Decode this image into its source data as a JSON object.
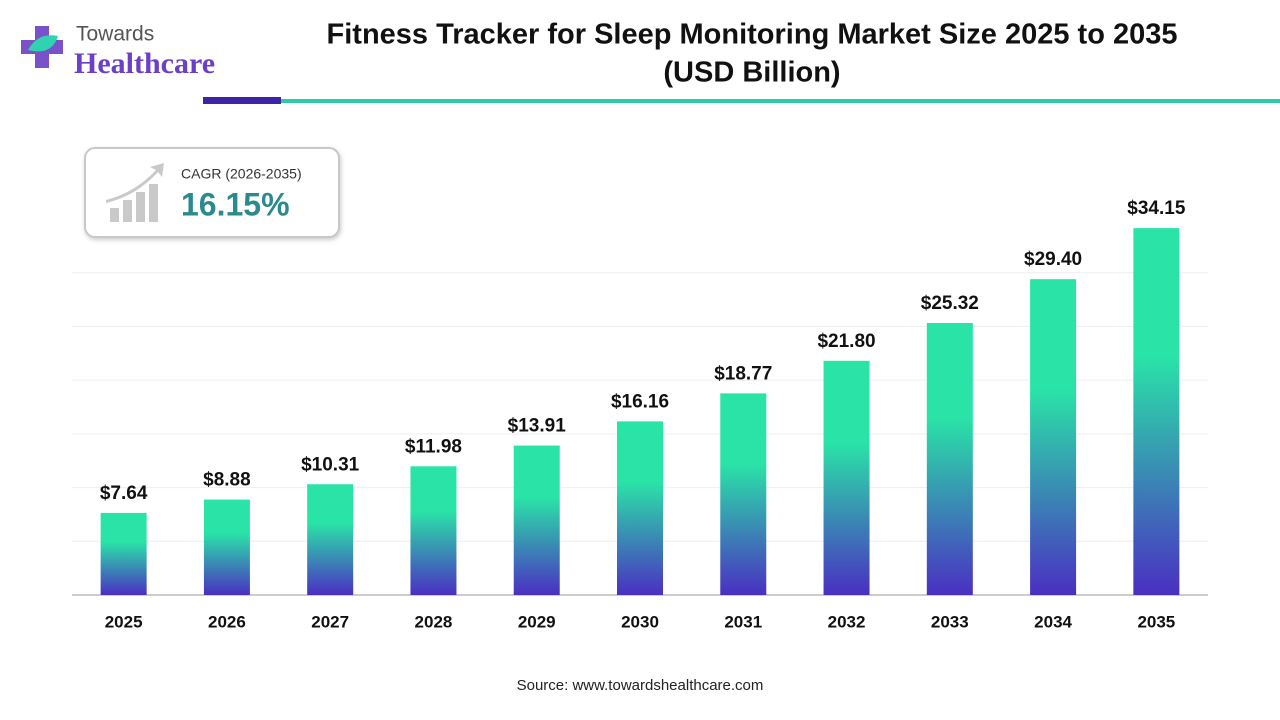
{
  "brand": {
    "line1": "Towards",
    "line2": "Healthcare"
  },
  "chart_data": {
    "type": "bar",
    "title": "Fitness Tracker for Sleep Monitoring Market Size 2025 to 2035",
    "subtitle": "(USD Billion)",
    "categories": [
      "2025",
      "2026",
      "2027",
      "2028",
      "2029",
      "2030",
      "2031",
      "2032",
      "2033",
      "2034",
      "2035"
    ],
    "values": [
      7.64,
      8.88,
      10.31,
      11.98,
      13.91,
      16.16,
      18.77,
      21.8,
      25.32,
      29.4,
      34.15
    ],
    "value_labels": [
      "$7.64",
      "$8.88",
      "$10.31",
      "$11.98",
      "$13.91",
      "$16.16",
      "$18.77",
      "$21.80",
      "$25.32",
      "$29.40",
      "$34.15"
    ],
    "colors": [
      "#2ae3a7",
      "#4a2fc2"
    ],
    "ylim": [
      0,
      35
    ],
    "yticks": [
      5,
      10,
      15,
      20,
      25,
      30
    ],
    "grid": true,
    "cagr_label": "CAGR (2026-2035)",
    "cagr_value": "16.15%",
    "source": "Source: www.towardshealthcare.com"
  }
}
